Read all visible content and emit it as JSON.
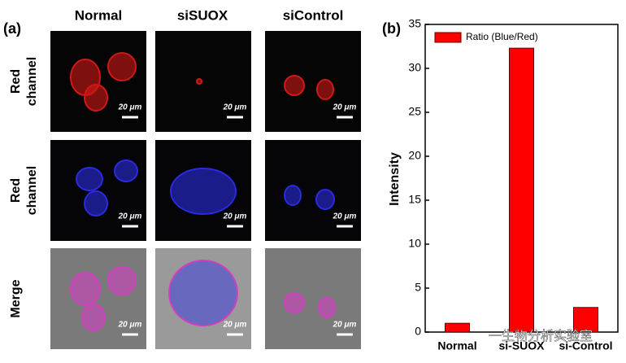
{
  "panel_a": {
    "label": "(a)",
    "columns": [
      "Normal",
      "siSUOX",
      "siControl"
    ],
    "rows": [
      [
        "Red",
        "channel"
      ],
      [
        "Red",
        "channel"
      ],
      [
        "Merge"
      ]
    ],
    "scale_bar": "20 μm"
  },
  "watermark": "一生物分析实验室",
  "chart_data": {
    "type": "bar",
    "panel_label": "(b)",
    "ylabel": "Intensity",
    "categories": [
      "Normal",
      "si-SUOX",
      "si-Control"
    ],
    "series": [
      {
        "name": "Ratio (Blue/Red)",
        "color": "#ff0000",
        "values": [
          1.0,
          32.3,
          2.8
        ]
      }
    ],
    "ylim": [
      0,
      35
    ],
    "yticks": [
      0,
      5,
      10,
      15,
      20,
      25,
      30,
      35
    ],
    "legend": "upper-left"
  }
}
